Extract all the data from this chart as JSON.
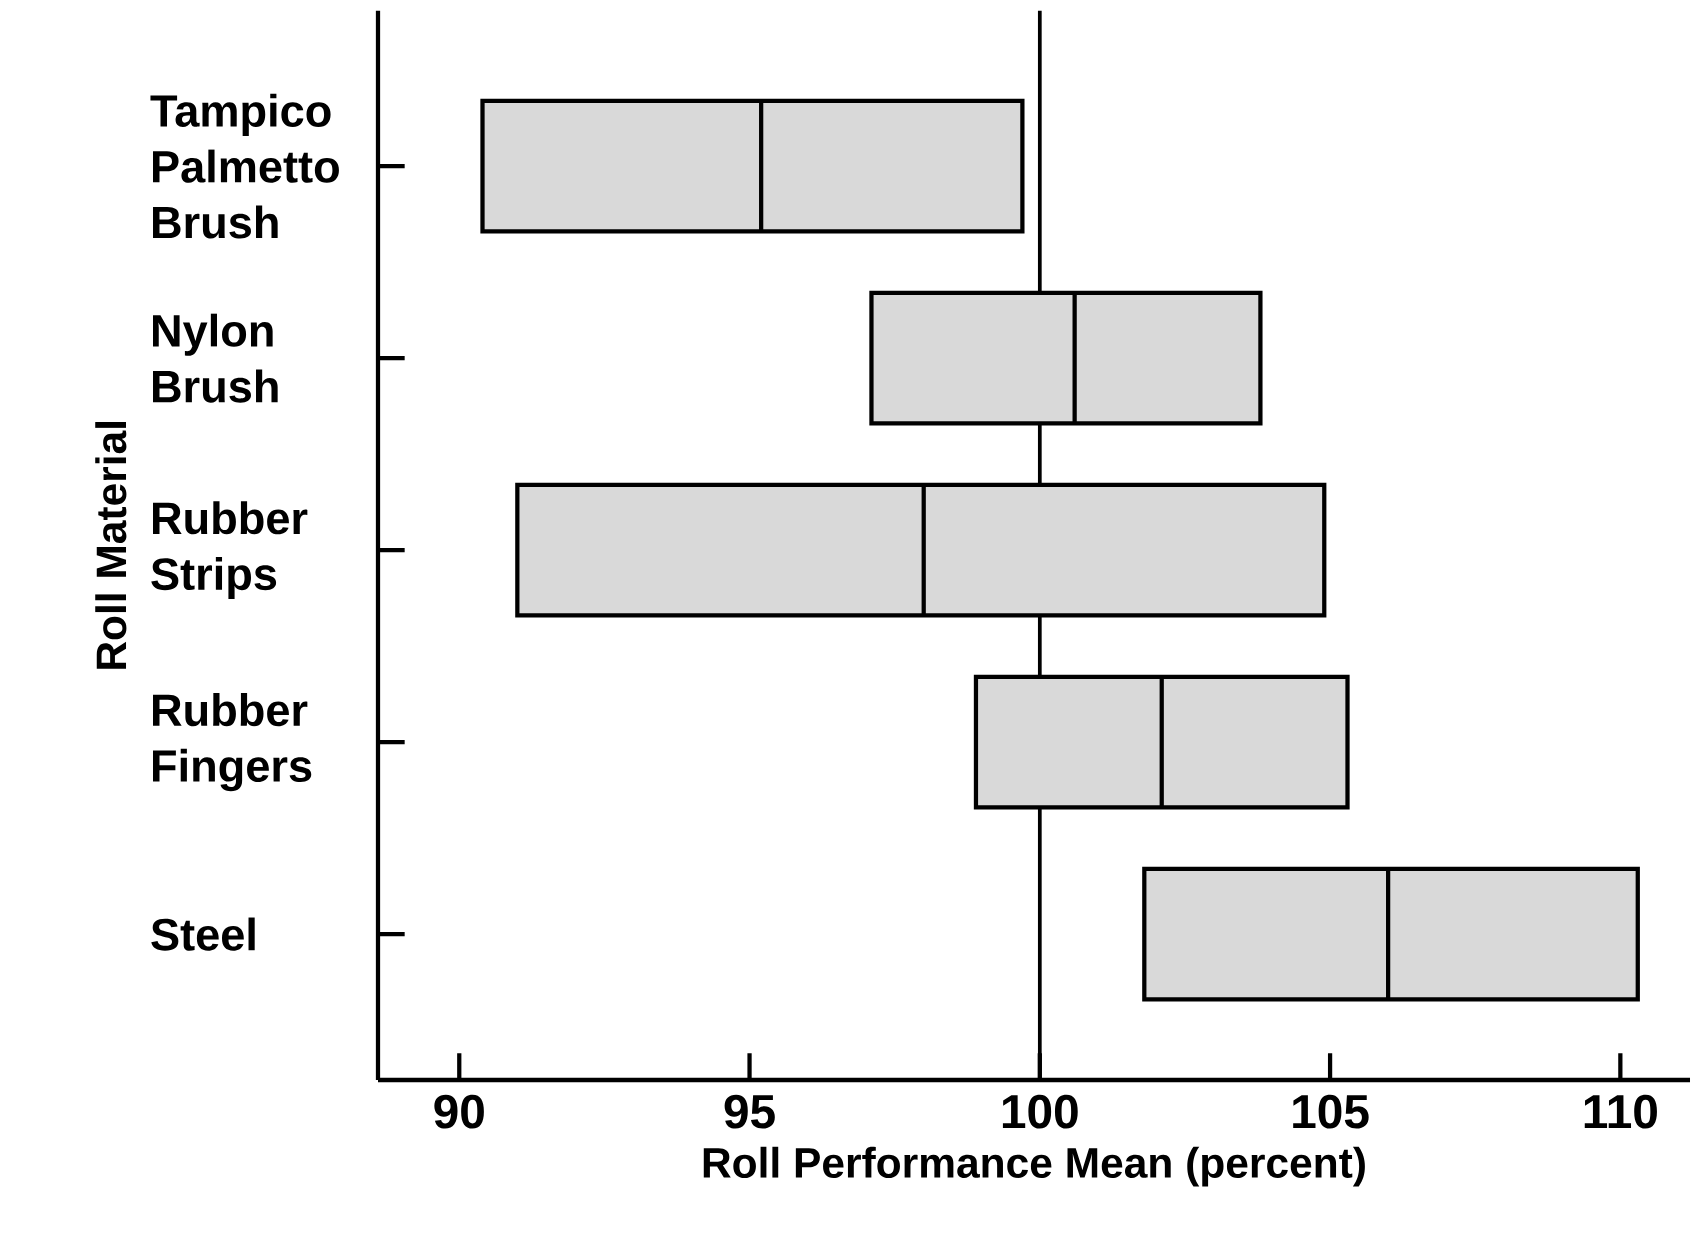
{
  "chart_data": {
    "type": "box",
    "orientation": "horizontal",
    "categories": [
      "Tampico Palmetto Brush",
      "Nylon Brush",
      "Rubber Strips",
      "Rubber Fingers",
      "Steel"
    ],
    "boxes": [
      {
        "low": 90.4,
        "q1": 90.4,
        "median": 95.2,
        "q3": 99.7,
        "high": 99.7
      },
      {
        "low": 97.1,
        "q1": 97.1,
        "median": 100.6,
        "q3": 103.8,
        "high": 103.8
      },
      {
        "low": 91.0,
        "q1": 91.0,
        "median": 98.0,
        "q3": 104.9,
        "high": 104.9
      },
      {
        "low": 98.9,
        "q1": 98.9,
        "median": 102.1,
        "q3": 105.3,
        "high": 105.3
      },
      {
        "low": 101.8,
        "q1": 101.8,
        "median": 106.0,
        "q3": 110.3,
        "high": 110.3
      }
    ],
    "color": "#d9d9d9",
    "xlim": [
      88.6,
      111.2
    ],
    "xticks": [
      90,
      95,
      100,
      105,
      110
    ],
    "xlabel": "Roll Performance Mean (percent)",
    "ylabel": "Roll Material",
    "ref_lines": [
      {
        "axis": "x",
        "value": 100
      }
    ]
  }
}
